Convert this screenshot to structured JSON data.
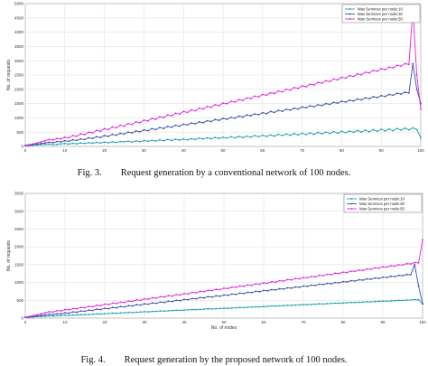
{
  "captions": {
    "fig3": "Fig. 3.        Request generation by a conventional network of 100 nodes.",
    "fig4": "Fig. 4.        Request generation by the proposed network of 100 nodes."
  },
  "colors": {
    "s10": "#1f9fb0",
    "s30": "#3b4fa8",
    "s50": "#e023e0"
  },
  "chart_data": [
    {
      "type": "line",
      "xlabel": "No. of nodes",
      "ylabel": "No. of requests",
      "xlim": [
        0,
        100
      ],
      "ylim": [
        0,
        5000
      ],
      "xticks": [
        "0",
        "10",
        "20",
        "30",
        "40",
        "50",
        "60",
        "70",
        "80",
        "90",
        "100"
      ],
      "yticks": [
        "0",
        "500",
        "1000",
        "1500",
        "2000",
        "2500",
        "3000",
        "3500",
        "4000",
        "4500",
        "5000"
      ],
      "grid": true,
      "legend_position": "top-right",
      "series": [
        {
          "name": "Max Services per node:10",
          "values": [
            20,
            30,
            40,
            50,
            60,
            70,
            80,
            60,
            70,
            90,
            100,
            80,
            110,
            90,
            120,
            100,
            130,
            110,
            140,
            120,
            150,
            130,
            160,
            140,
            170,
            160,
            180,
            150,
            190,
            170,
            200,
            180,
            210,
            190,
            230,
            200,
            240,
            210,
            250,
            220,
            260,
            230,
            270,
            240,
            290,
            260,
            300,
            270,
            310,
            280,
            320,
            290,
            340,
            300,
            350,
            310,
            360,
            320,
            380,
            340,
            390,
            350,
            400,
            360,
            420,
            380,
            430,
            390,
            450,
            400,
            460,
            410,
            470,
            420,
            490,
            440,
            500,
            450,
            520,
            460,
            530,
            480,
            540,
            490,
            560,
            500,
            570,
            510,
            590,
            530,
            600,
            540,
            610,
            550,
            630,
            570,
            640,
            580,
            650,
            590,
            300
          ]
        },
        {
          "name": "Max Services per node:30",
          "values": [
            30,
            40,
            60,
            80,
            100,
            120,
            150,
            130,
            170,
            160,
            200,
            180,
            230,
            210,
            260,
            240,
            300,
            280,
            340,
            310,
            380,
            350,
            420,
            390,
            460,
            430,
            500,
            470,
            540,
            510,
            580,
            550,
            620,
            590,
            660,
            630,
            700,
            670,
            740,
            710,
            780,
            750,
            820,
            790,
            860,
            830,
            900,
            870,
            940,
            910,
            980,
            950,
            1020,
            990,
            1060,
            1030,
            1100,
            1070,
            1140,
            1110,
            1180,
            1150,
            1220,
            1190,
            1260,
            1230,
            1300,
            1270,
            1340,
            1310,
            1380,
            1350,
            1420,
            1390,
            1460,
            1430,
            1500,
            1470,
            1540,
            1510,
            1580,
            1550,
            1620,
            1590,
            1660,
            1630,
            1700,
            1670,
            1740,
            1710,
            1780,
            1750,
            1820,
            1790,
            1860,
            1830,
            1900,
            1870,
            2900,
            2000,
            1500
          ]
        },
        {
          "name": "Max Services per node:50",
          "values": [
            40,
            60,
            90,
            120,
            160,
            200,
            240,
            220,
            280,
            260,
            320,
            300,
            380,
            350,
            440,
            410,
            500,
            470,
            560,
            530,
            620,
            590,
            680,
            650,
            740,
            710,
            800,
            770,
            860,
            830,
            920,
            890,
            980,
            950,
            1040,
            1010,
            1100,
            1070,
            1160,
            1130,
            1220,
            1190,
            1280,
            1250,
            1340,
            1310,
            1400,
            1370,
            1460,
            1430,
            1520,
            1490,
            1580,
            1550,
            1640,
            1610,
            1700,
            1670,
            1760,
            1730,
            1820,
            1790,
            1880,
            1850,
            1940,
            1910,
            2000,
            1970,
            2060,
            2030,
            2120,
            2090,
            2180,
            2150,
            2240,
            2210,
            2300,
            2270,
            2360,
            2330,
            2420,
            2390,
            2480,
            2450,
            2540,
            2510,
            2600,
            2570,
            2660,
            2630,
            2720,
            2690,
            2780,
            2750,
            2840,
            2810,
            2900,
            2870,
            4800,
            2500,
            1300
          ]
        }
      ]
    },
    {
      "type": "line",
      "xlabel": "No. of nodes",
      "ylabel": "No. of requests",
      "xlim": [
        0,
        100
      ],
      "ylim": [
        0,
        3500
      ],
      "xticks": [
        "0",
        "10",
        "20",
        "30",
        "40",
        "50",
        "60",
        "70",
        "80",
        "90",
        "100"
      ],
      "yticks": [
        "0",
        "500",
        "1000",
        "1500",
        "2000",
        "2500",
        "3000",
        "3500"
      ],
      "grid": true,
      "legend_position": "top-right",
      "series": [
        {
          "name": "Max Services per node:10",
          "values": [
            15,
            20,
            30,
            40,
            45,
            50,
            60,
            55,
            65,
            70,
            80,
            75,
            85,
            90,
            100,
            95,
            105,
            110,
            120,
            115,
            125,
            130,
            140,
            135,
            145,
            150,
            160,
            155,
            165,
            170,
            180,
            175,
            185,
            190,
            200,
            195,
            205,
            210,
            220,
            215,
            225,
            230,
            240,
            235,
            245,
            250,
            260,
            255,
            265,
            270,
            280,
            275,
            285,
            290,
            300,
            295,
            305,
            310,
            320,
            315,
            325,
            330,
            340,
            335,
            345,
            350,
            360,
            355,
            365,
            370,
            380,
            375,
            385,
            390,
            400,
            395,
            405,
            410,
            420,
            415,
            425,
            430,
            440,
            435,
            445,
            450,
            460,
            455,
            465,
            470,
            480,
            475,
            485,
            490,
            500,
            495,
            505,
            510,
            520,
            515,
            400
          ]
        },
        {
          "name": "Max Services per node:30",
          "values": [
            20,
            30,
            45,
            60,
            75,
            90,
            110,
            100,
            125,
            120,
            150,
            140,
            175,
            165,
            200,
            190,
            225,
            215,
            250,
            240,
            275,
            265,
            300,
            290,
            325,
            315,
            350,
            340,
            375,
            365,
            400,
            390,
            425,
            415,
            450,
            440,
            475,
            465,
            500,
            490,
            525,
            515,
            550,
            540,
            575,
            565,
            600,
            590,
            625,
            615,
            650,
            640,
            675,
            665,
            700,
            690,
            725,
            715,
            750,
            740,
            775,
            765,
            800,
            790,
            825,
            815,
            850,
            840,
            875,
            865,
            900,
            890,
            925,
            915,
            950,
            940,
            975,
            965,
            1000,
            990,
            1025,
            1015,
            1050,
            1040,
            1075,
            1065,
            1100,
            1090,
            1125,
            1115,
            1150,
            1140,
            1175,
            1165,
            1200,
            1190,
            1225,
            1215,
            1500,
            900,
            400
          ]
        },
        {
          "name": "Max Services per node:50",
          "values": [
            30,
            45,
            70,
            95,
            120,
            150,
            180,
            170,
            210,
            200,
            240,
            230,
            270,
            260,
            300,
            290,
            330,
            320,
            360,
            350,
            390,
            380,
            420,
            410,
            450,
            440,
            480,
            470,
            510,
            500,
            540,
            530,
            570,
            560,
            600,
            590,
            630,
            620,
            660,
            650,
            690,
            680,
            720,
            710,
            750,
            740,
            780,
            770,
            810,
            800,
            840,
            830,
            870,
            860,
            900,
            890,
            930,
            920,
            960,
            950,
            990,
            980,
            1020,
            1010,
            1050,
            1040,
            1080,
            1070,
            1110,
            1100,
            1140,
            1130,
            1170,
            1160,
            1200,
            1190,
            1230,
            1220,
            1260,
            1250,
            1290,
            1280,
            1320,
            1310,
            1350,
            1340,
            1380,
            1370,
            1410,
            1400,
            1440,
            1430,
            1470,
            1460,
            1500,
            1490,
            1530,
            1520,
            1560,
            1550,
            2200
          ]
        }
      ]
    }
  ]
}
